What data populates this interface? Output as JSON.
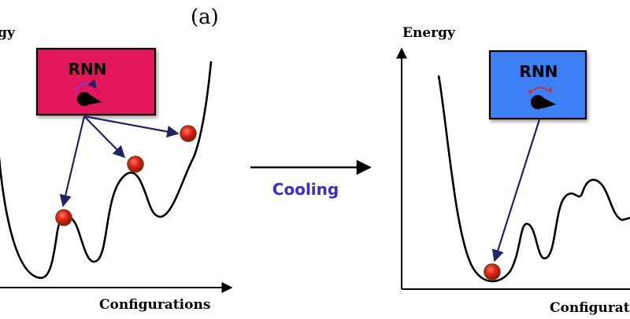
{
  "panel_label": "(a)",
  "arrow_label": "Cooling",
  "left_panel": {
    "y_axis_label": "Energy",
    "x_axis_label": "Configurations",
    "box_label": "RNN",
    "box_color": "#e2175b"
  },
  "right_panel": {
    "y_axis_label": "Energy",
    "x_axis_label": "Configurations",
    "box_label": "RNN",
    "box_color": "#3d7ff5"
  },
  "colors": {
    "arrow": "#232362",
    "cooling_text": "#3d2bd0",
    "dial_arrow_left": "#6b4bd8",
    "dial_arrow_right": "#e0281e",
    "ball": "#d62718"
  }
}
